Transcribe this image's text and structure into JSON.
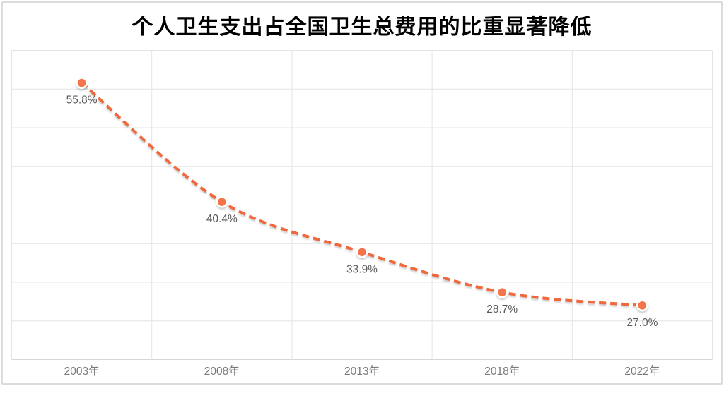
{
  "frame": {
    "background": "#ffffff",
    "border_color": "#dcdcdc"
  },
  "chart_data": {
    "type": "line",
    "title": "个人卫生支出占全国卫生总费用的比重显著降低",
    "categories": [
      "2003年",
      "2008年",
      "2013年",
      "2018年",
      "2022年"
    ],
    "values": [
      55.8,
      40.4,
      33.9,
      28.7,
      27.0
    ],
    "point_labels": [
      "55.8%",
      "40.4%",
      "33.9%",
      "28.7%",
      "27.0%"
    ],
    "xlabel": "",
    "ylabel": "",
    "ylim": [
      20,
      60
    ],
    "grid_step": 5,
    "grid": true,
    "legend_position": "none",
    "line_style": "dashed",
    "smooth": true,
    "colors": {
      "line": "#f0683a",
      "marker_fill": "#f3754a",
      "marker_ring": "#ffffff",
      "grid": "#e4e4e4",
      "axis_line": "#d6d6d6",
      "point_label": "#595959",
      "axis_label": "#7a7a7a",
      "title": "#000000"
    }
  }
}
